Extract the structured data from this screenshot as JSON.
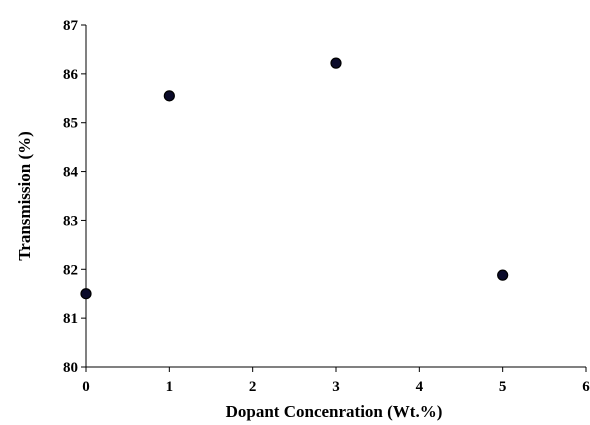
{
  "chart_data": {
    "type": "scatter",
    "title": "",
    "xlabel": "Dopant Concenration (Wt.%)",
    "ylabel": "Transmission (%)",
    "xlim": [
      0,
      6
    ],
    "ylim": [
      80,
      87
    ],
    "xticks": [
      0,
      1,
      2,
      3,
      4,
      5,
      6
    ],
    "yticks": [
      80,
      81,
      82,
      83,
      84,
      85,
      86,
      87
    ],
    "grid": false,
    "legend": "none",
    "marker_color": "#0b0b2a",
    "series": [
      {
        "x": [
          0,
          1,
          3,
          5
        ],
        "y": [
          81.5,
          85.55,
          86.22,
          81.88
        ]
      }
    ]
  }
}
